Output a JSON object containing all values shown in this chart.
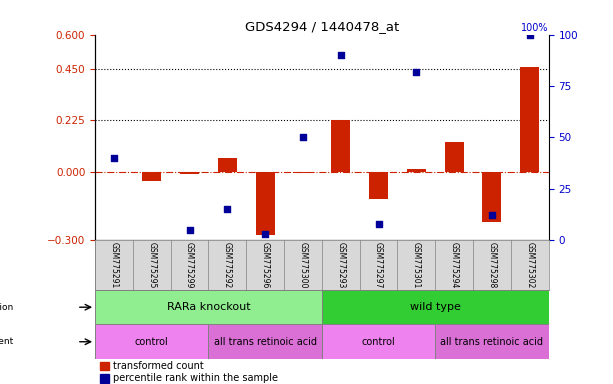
{
  "title": "GDS4294 / 1440478_at",
  "samples": [
    "GSM775291",
    "GSM775295",
    "GSM775299",
    "GSM775292",
    "GSM775296",
    "GSM775300",
    "GSM775293",
    "GSM775297",
    "GSM775301",
    "GSM775294",
    "GSM775298",
    "GSM775302"
  ],
  "red_bars": [
    0.0,
    -0.04,
    -0.01,
    0.06,
    -0.28,
    -0.005,
    0.225,
    -0.12,
    0.01,
    0.13,
    -0.22,
    0.46
  ],
  "blue_dots_pct": [
    40,
    null,
    5,
    15,
    3,
    50,
    90,
    8,
    82,
    null,
    12,
    100
  ],
  "ylim_left": [
    -0.3,
    0.6
  ],
  "ylim_right": [
    0,
    100
  ],
  "yticks_left": [
    -0.3,
    0.0,
    0.225,
    0.45,
    0.6
  ],
  "yticks_right": [
    0,
    25,
    50,
    75,
    100
  ],
  "hlines": [
    0.225,
    0.45
  ],
  "genotype_groups": [
    {
      "label": "RARa knockout",
      "start": 0,
      "end": 6,
      "color": "#90ee90"
    },
    {
      "label": "wild type",
      "start": 6,
      "end": 12,
      "color": "#32cd32"
    }
  ],
  "agent_groups": [
    {
      "label": "control",
      "start": 0,
      "end": 3,
      "color": "#ee82ee"
    },
    {
      "label": "all trans retinoic acid",
      "start": 3,
      "end": 6,
      "color": "#da70d6"
    },
    {
      "label": "control",
      "start": 6,
      "end": 9,
      "color": "#ee82ee"
    },
    {
      "label": "all trans retinoic acid",
      "start": 9,
      "end": 12,
      "color": "#da70d6"
    }
  ],
  "legend_red": "transformed count",
  "legend_blue": "percentile rank within the sample",
  "bar_color": "#cc2200",
  "dot_color": "#000099",
  "hline_color": "black",
  "zero_line_color": "#cc2200",
  "left_axis_color": "#cc2200",
  "right_axis_color": "#0000cc",
  "bar_width": 0.5
}
